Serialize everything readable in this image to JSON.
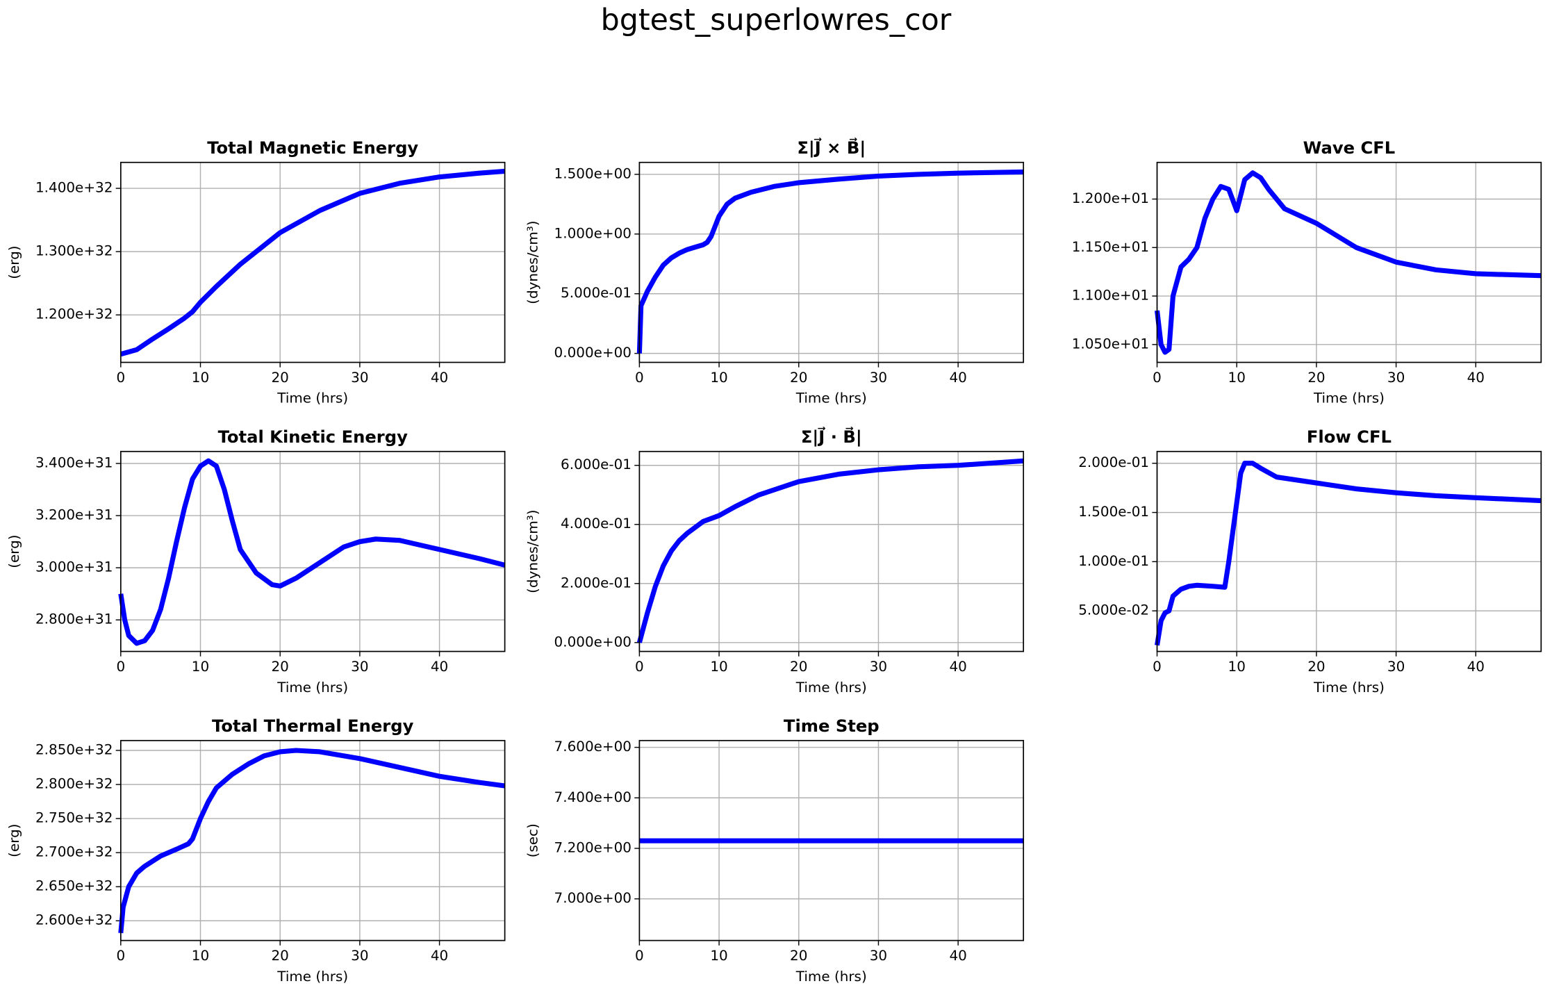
{
  "title": "bgtest_superlowres_cor",
  "chart_data": [
    {
      "type": "line",
      "title": "Total Magnetic Energy",
      "xlabel": "Time (hrs)",
      "ylabel": "(erg)",
      "color": "#0000ff",
      "grid": true,
      "x": [
        0,
        2,
        4,
        6,
        8,
        9,
        10,
        12,
        15,
        20,
        25,
        30,
        35,
        40,
        45,
        48.2
      ],
      "values": [
        1.138e+32,
        1.145e+32,
        1.162e+32,
        1.178e+32,
        1.195e+32,
        1.205e+32,
        1.22e+32,
        1.245e+32,
        1.28e+32,
        1.33e+32,
        1.365e+32,
        1.392e+32,
        1.408e+32,
        1.418e+32,
        1.424e+32,
        1.427e+32
      ],
      "xlim": [
        0,
        48.2
      ],
      "ylim": [
        1.125e+32,
        1.441e+32
      ],
      "xticks": [
        0,
        10,
        20,
        30,
        40
      ],
      "yticks": [
        {
          "value": 1.2e+32,
          "label": "1.200e+32"
        },
        {
          "value": 1.3e+32,
          "label": "1.300e+32"
        },
        {
          "value": 1.4e+32,
          "label": "1.400e+32"
        }
      ]
    },
    {
      "type": "line",
      "title": "Σ|J⃗ × B⃗|",
      "xlabel": "Time (hrs)",
      "ylabel": "(dynes/cm³)",
      "color": "#0000ff",
      "grid": true,
      "x": [
        0,
        0.2,
        1,
        2,
        3,
        4,
        5,
        6,
        7,
        8,
        8.5,
        9,
        10,
        11,
        12,
        14,
        17,
        20,
        25,
        30,
        35,
        40,
        48.2
      ],
      "values": [
        0,
        0.4,
        0.52,
        0.64,
        0.74,
        0.8,
        0.84,
        0.87,
        0.89,
        0.91,
        0.93,
        0.98,
        1.15,
        1.25,
        1.3,
        1.35,
        1.4,
        1.43,
        1.46,
        1.485,
        1.5,
        1.51,
        1.52
      ],
      "xlim": [
        0,
        48.2
      ],
      "ylim": [
        -0.075,
        1.6
      ],
      "xticks": [
        0,
        10,
        20,
        30,
        40
      ],
      "yticks": [
        {
          "value": 0,
          "label": "0.000e+00"
        },
        {
          "value": 0.5,
          "label": "5.000e-01"
        },
        {
          "value": 1.0,
          "label": "1.000e+00"
        },
        {
          "value": 1.5,
          "label": "1.500e+00"
        }
      ]
    },
    {
      "type": "line",
      "title": "Wave CFL",
      "xlabel": "Time (hrs)",
      "color": "#0000ff",
      "grid": true,
      "x": [
        0,
        0.5,
        1,
        1.5,
        2,
        3,
        4,
        5,
        6,
        7,
        8,
        9,
        10,
        11,
        12,
        13,
        14,
        16,
        20,
        25,
        30,
        35,
        40,
        48.2
      ],
      "values": [
        10.85,
        10.5,
        10.42,
        10.45,
        11.0,
        11.3,
        11.38,
        11.5,
        11.8,
        12.0,
        12.13,
        12.1,
        11.88,
        12.2,
        12.27,
        12.22,
        12.1,
        11.9,
        11.75,
        11.5,
        11.35,
        11.27,
        11.23,
        11.21
      ],
      "xlim": [
        0,
        48.2
      ],
      "ylim": [
        10.316,
        12.378
      ],
      "xticks": [
        0,
        10,
        20,
        30,
        40
      ],
      "yticks": [
        {
          "value": 10.5,
          "label": "1.050e+01"
        },
        {
          "value": 11.0,
          "label": "1.100e+01"
        },
        {
          "value": 11.5,
          "label": "1.150e+01"
        },
        {
          "value": 12.0,
          "label": "1.200e+01"
        }
      ]
    },
    {
      "type": "line",
      "title": "Total Kinetic Energy",
      "xlabel": "Time (hrs)",
      "ylabel": "(erg)",
      "color": "#0000ff",
      "grid": true,
      "x": [
        0,
        0.5,
        1,
        2,
        3,
        4,
        5,
        6,
        7,
        8,
        9,
        10,
        11,
        12,
        13,
        14,
        15,
        17,
        19,
        20,
        22,
        25,
        28,
        30,
        32,
        35,
        40,
        45,
        48.2
      ],
      "values": [
        2.9e+31,
        2.8e+31,
        2.74e+31,
        2.71e+31,
        2.72e+31,
        2.76e+31,
        2.84e+31,
        2.96e+31,
        3.1e+31,
        3.23e+31,
        3.34e+31,
        3.39e+31,
        3.41e+31,
        3.39e+31,
        3.3e+31,
        3.18e+31,
        3.07e+31,
        2.98e+31,
        2.935e+31,
        2.93e+31,
        2.96e+31,
        3.02e+31,
        3.08e+31,
        3.1e+31,
        3.11e+31,
        3.105e+31,
        3.07e+31,
        3.035e+31,
        3.01e+31
      ],
      "xlim": [
        0,
        48.2
      ],
      "ylim": [
        2.679e+31,
        3.446e+31
      ],
      "xticks": [
        0,
        10,
        20,
        30,
        40
      ],
      "yticks": [
        {
          "value": 2.8e+31,
          "label": "2.800e+31"
        },
        {
          "value": 3e+31,
          "label": "3.000e+31"
        },
        {
          "value": 3.2e+31,
          "label": "3.200e+31"
        },
        {
          "value": 3.4e+31,
          "label": "3.400e+31"
        }
      ]
    },
    {
      "type": "line",
      "title": "Σ|J⃗ · B⃗|",
      "xlabel": "Time (hrs)",
      "ylabel": "(dynes/cm³)",
      "color": "#0000ff",
      "grid": true,
      "x": [
        0,
        0.5,
        1,
        2,
        3,
        4,
        5,
        6,
        7,
        8,
        10,
        12,
        15,
        20,
        25,
        30,
        35,
        40,
        48.2
      ],
      "values": [
        0,
        0.05,
        0.1,
        0.19,
        0.26,
        0.31,
        0.345,
        0.37,
        0.39,
        0.41,
        0.43,
        0.46,
        0.5,
        0.545,
        0.57,
        0.585,
        0.595,
        0.6,
        0.615
      ],
      "xlim": [
        0,
        48.2
      ],
      "ylim": [
        -0.03,
        0.647
      ],
      "xticks": [
        0,
        10,
        20,
        30,
        40
      ],
      "yticks": [
        {
          "value": 0,
          "label": "0.000e+00"
        },
        {
          "value": 0.2,
          "label": "2.000e-01"
        },
        {
          "value": 0.4,
          "label": "4.000e-01"
        },
        {
          "value": 0.6,
          "label": "6.000e-01"
        }
      ]
    },
    {
      "type": "line",
      "title": "Flow CFL",
      "xlabel": "Time (hrs)",
      "color": "#0000ff",
      "grid": true,
      "x": [
        0,
        0.5,
        1,
        1.5,
        2,
        3,
        4,
        5,
        7,
        8.5,
        9,
        10,
        10.5,
        11,
        12,
        13,
        15,
        20,
        25,
        30,
        35,
        40,
        48.2
      ],
      "values": [
        0.015,
        0.04,
        0.048,
        0.05,
        0.065,
        0.072,
        0.075,
        0.076,
        0.075,
        0.074,
        0.1,
        0.16,
        0.19,
        0.2,
        0.2,
        0.195,
        0.186,
        0.18,
        0.174,
        0.17,
        0.167,
        0.165,
        0.162
      ],
      "xlim": [
        0,
        48.2
      ],
      "ylim": [
        0.00875,
        0.212
      ],
      "xticks": [
        0,
        10,
        20,
        30,
        40
      ],
      "yticks": [
        {
          "value": 0.05,
          "label": "5.000e-02"
        },
        {
          "value": 0.1,
          "label": "1.000e-01"
        },
        {
          "value": 0.15,
          "label": "1.500e-01"
        },
        {
          "value": 0.2,
          "label": "2.000e-01"
        }
      ]
    },
    {
      "type": "line",
      "title": "Total Thermal Energy",
      "xlabel": "Time (hrs)",
      "ylabel": "(erg)",
      "color": "#0000ff",
      "grid": true,
      "x": [
        0,
        0.3,
        1,
        2,
        3,
        5,
        7,
        8.5,
        9,
        10,
        11,
        12,
        14,
        16,
        18,
        20,
        22,
        25,
        30,
        35,
        40,
        45,
        48.2
      ],
      "values": [
        2.582e+32,
        2.62e+32,
        2.65e+32,
        2.67e+32,
        2.68e+32,
        2.695e+32,
        2.705e+32,
        2.713e+32,
        2.72e+32,
        2.75e+32,
        2.775e+32,
        2.795e+32,
        2.815e+32,
        2.83e+32,
        2.842e+32,
        2.848e+32,
        2.85e+32,
        2.848e+32,
        2.838e+32,
        2.825e+32,
        2.812e+32,
        2.803e+32,
        2.798e+32
      ],
      "xlim": [
        0,
        48.2
      ],
      "ylim": [
        2.571e+32,
        2.8645e+32
      ],
      "xticks": [
        0,
        10,
        20,
        30,
        40
      ],
      "yticks": [
        {
          "value": 2.6e+32,
          "label": "2.600e+32"
        },
        {
          "value": 2.65e+32,
          "label": "2.650e+32"
        },
        {
          "value": 2.7e+32,
          "label": "2.700e+32"
        },
        {
          "value": 2.75e+32,
          "label": "2.750e+32"
        },
        {
          "value": 2.8e+32,
          "label": "2.800e+32"
        },
        {
          "value": 2.85e+32,
          "label": "2.850e+32"
        }
      ]
    },
    {
      "type": "line",
      "title": "Time Step",
      "xlabel": "Time (hrs)",
      "ylabel": "(sec)",
      "color": "#0000ff",
      "grid": true,
      "x": [
        0,
        48.2
      ],
      "values": [
        7.23,
        7.23
      ],
      "xlim": [
        0,
        48.2
      ],
      "ylim": [
        6.835,
        7.627
      ],
      "xticks": [
        0,
        10,
        20,
        30,
        40
      ],
      "yticks": [
        {
          "value": 7.0,
          "label": "7.000e+00"
        },
        {
          "value": 7.2,
          "label": "7.200e+00"
        },
        {
          "value": 7.4,
          "label": "7.400e+00"
        },
        {
          "value": 7.6,
          "label": "7.600e+00"
        }
      ]
    }
  ]
}
